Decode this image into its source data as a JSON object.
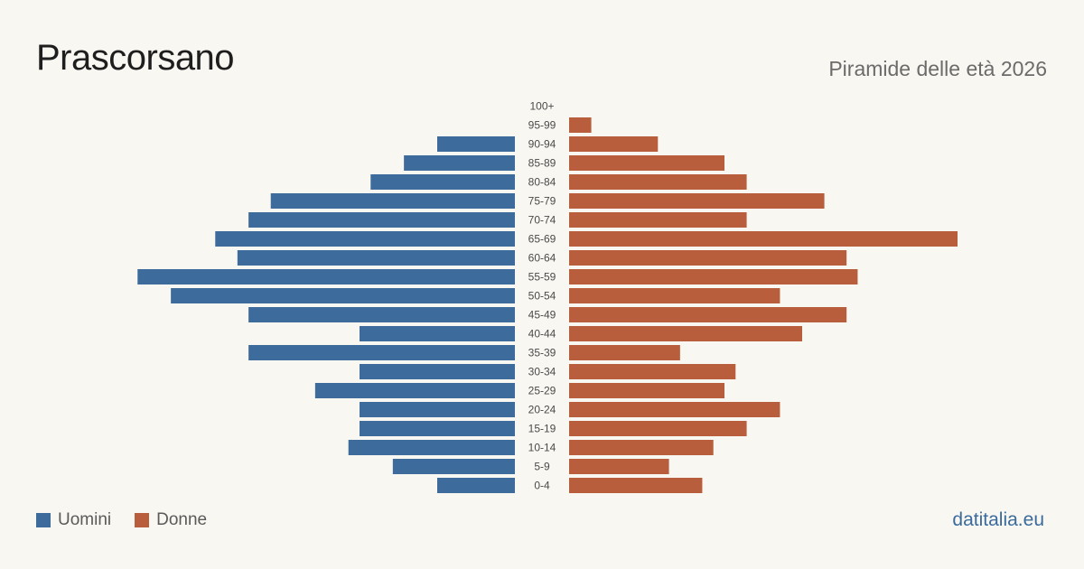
{
  "header": {
    "title": "Prascorsano",
    "subtitle": "Piramide delle età 2026"
  },
  "legend": {
    "men_label": "Uomini",
    "women_label": "Donne"
  },
  "source": "datitalia.eu",
  "colors": {
    "men": "#3d6b9b",
    "women": "#b85e3d",
    "background": "#f9f7f2"
  },
  "chart_data": {
    "type": "bar",
    "orientation": "horizontal-pyramid",
    "categories": [
      "100+",
      "95-99",
      "90-94",
      "85-89",
      "80-84",
      "75-79",
      "70-74",
      "65-69",
      "60-64",
      "55-59",
      "50-54",
      "45-49",
      "40-44",
      "35-39",
      "30-34",
      "25-29",
      "20-24",
      "15-19",
      "10-14",
      "5-9",
      "0-4"
    ],
    "series": [
      {
        "name": "Uomini",
        "values": [
          0,
          0,
          7,
          10,
          13,
          22,
          24,
          27,
          25,
          34,
          31,
          24,
          14,
          24,
          14,
          18,
          14,
          14,
          15,
          11,
          7
        ]
      },
      {
        "name": "Donne",
        "values": [
          0,
          2,
          8,
          14,
          16,
          23,
          16,
          35,
          25,
          26,
          19,
          25,
          21,
          10,
          15,
          14,
          19,
          16,
          13,
          9,
          12
        ]
      }
    ],
    "xlim": [
      0,
      35
    ],
    "grid": false,
    "legend_position": "bottom-left"
  }
}
